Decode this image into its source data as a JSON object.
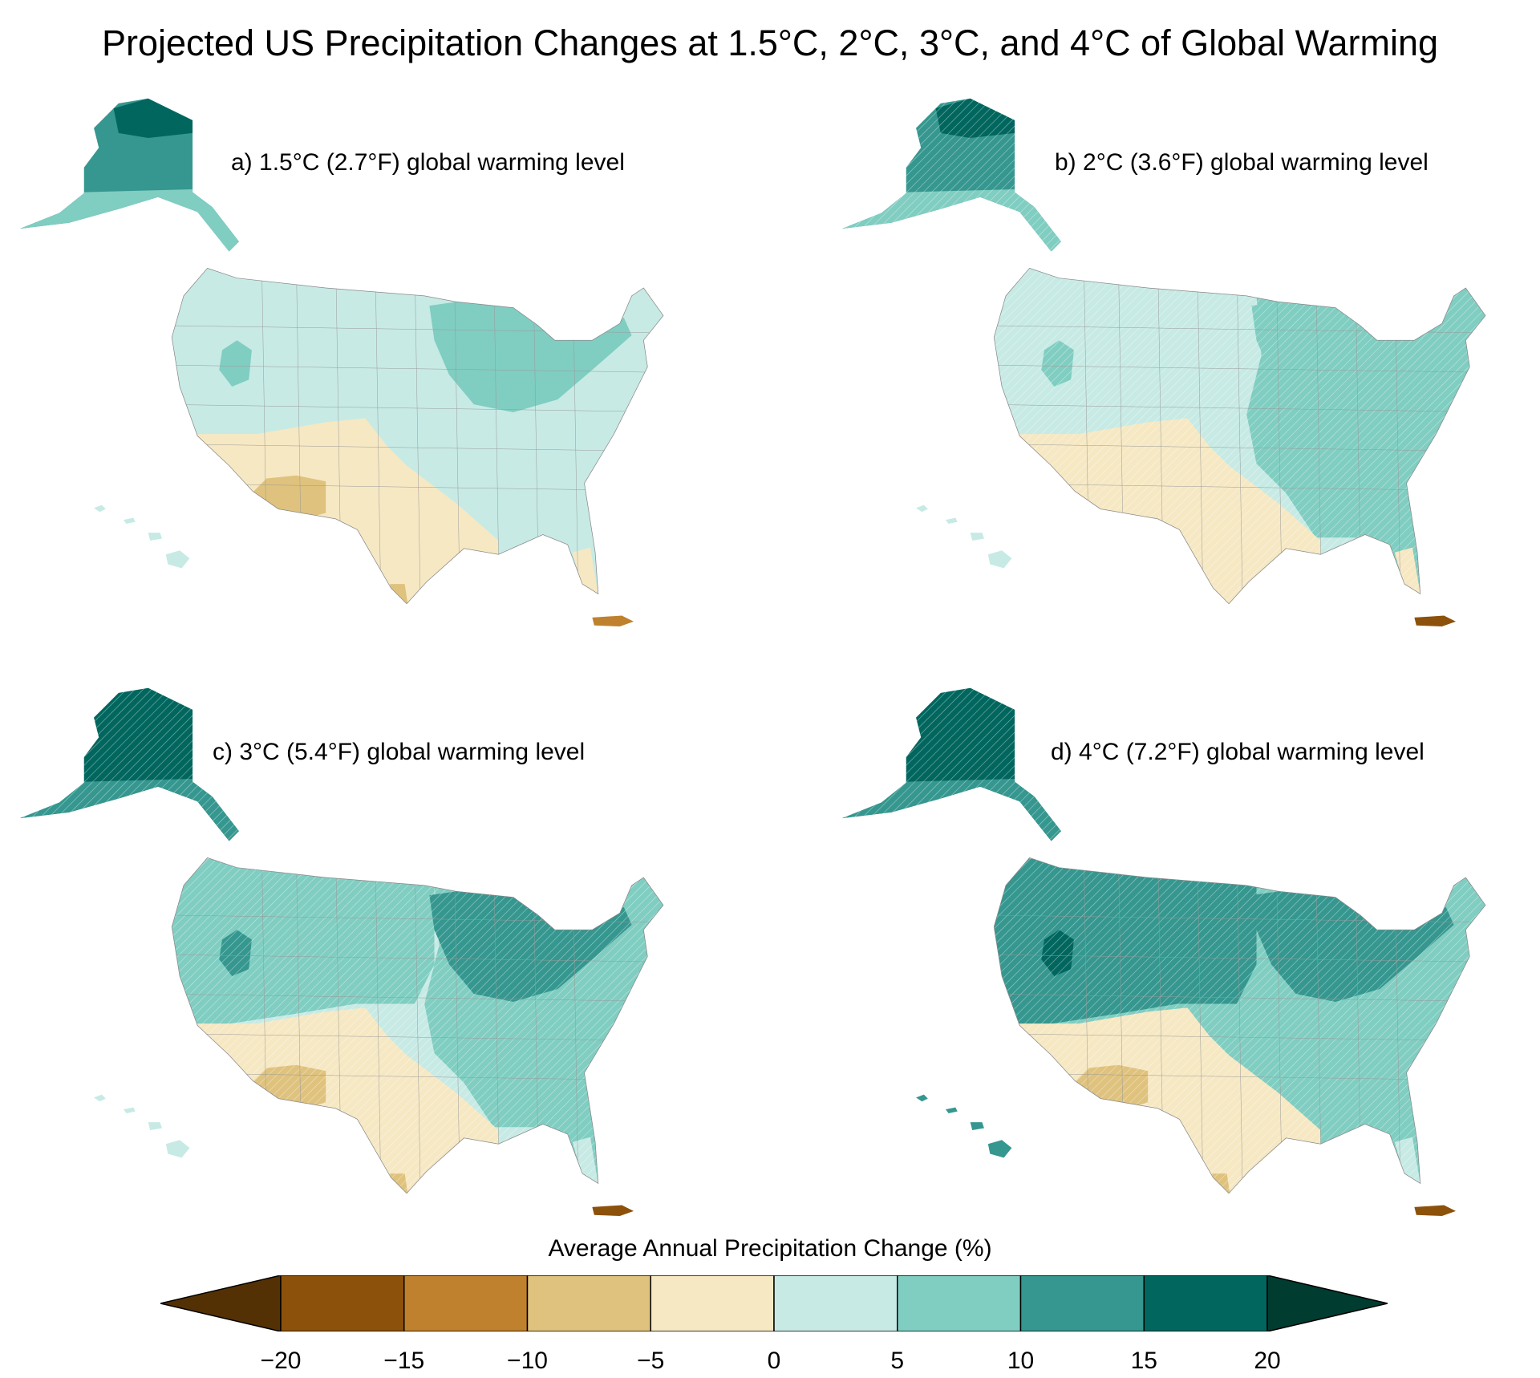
{
  "title": "Projected US Precipitation Changes at 1.5°C, 2°C, 3°C, and 4°C of Global Warming",
  "colorbar": {
    "title": "Average Annual Precipitation Change (%)",
    "ticks": [
      "−20",
      "−15",
      "−10",
      "−5",
      "0",
      "5",
      "10",
      "15",
      "20"
    ],
    "bins": [
      "< -20",
      "-20 to -15",
      "-15 to -10",
      "-10 to -5",
      "-5 to 0",
      "0 to 5",
      "5 to 10",
      "10 to 15",
      "15 to 20",
      "> 20"
    ],
    "colors": [
      "#543005",
      "#8c510a",
      "#bf812d",
      "#dfc27d",
      "#f6e8c3",
      "#c7eae5",
      "#80cdc1",
      "#35978f",
      "#01665e",
      "#003c30"
    ]
  },
  "panels": [
    {
      "label": "a)  1.5°C (2.7°F) global warming level",
      "regions": {
        "base": 5,
        "west": null,
        "east": null,
        "sw": 4,
        "swcore": 3,
        "ne": 6,
        "idaho": 6,
        "fl": 4,
        "stx": 3,
        "alaska": 7,
        "alaska_north": 8,
        "alaska_south": 6,
        "hawaii": 5,
        "pr": 2
      }
    },
    {
      "label": "b)  2°C (3.6°F) global warming level",
      "regions": {
        "base": 5,
        "west": null,
        "east": 6,
        "sw": 4,
        "swcore": 4,
        "ne": 6,
        "idaho": 6,
        "fl": 4,
        "stx": 4,
        "alaska": 7,
        "alaska_north": 8,
        "alaska_south": 6,
        "hawaii": 5,
        "pr": 1
      }
    },
    {
      "label": "c)  3°C (5.4°F) global warming level",
      "regions": {
        "base": 5,
        "west": 6,
        "east": 6,
        "sw": 4,
        "swcore": 3,
        "ne": 7,
        "idaho": 7,
        "fl": 5,
        "stx": 3,
        "alaska": 8,
        "alaska_north": 8,
        "alaska_south": 7,
        "hawaii": 5,
        "pr": 1
      }
    },
    {
      "label": "d)  4°C (7.2°F) global warming level",
      "regions": {
        "base": 6,
        "west": 7,
        "east": 6,
        "sw": 4,
        "swcore": 3,
        "ne": 7,
        "idaho": 8,
        "fl": 5,
        "stx": 3,
        "alaska": 8,
        "alaska_north": 8,
        "alaska_south": 7,
        "hawaii": 7,
        "pr": 1
      }
    }
  ]
}
